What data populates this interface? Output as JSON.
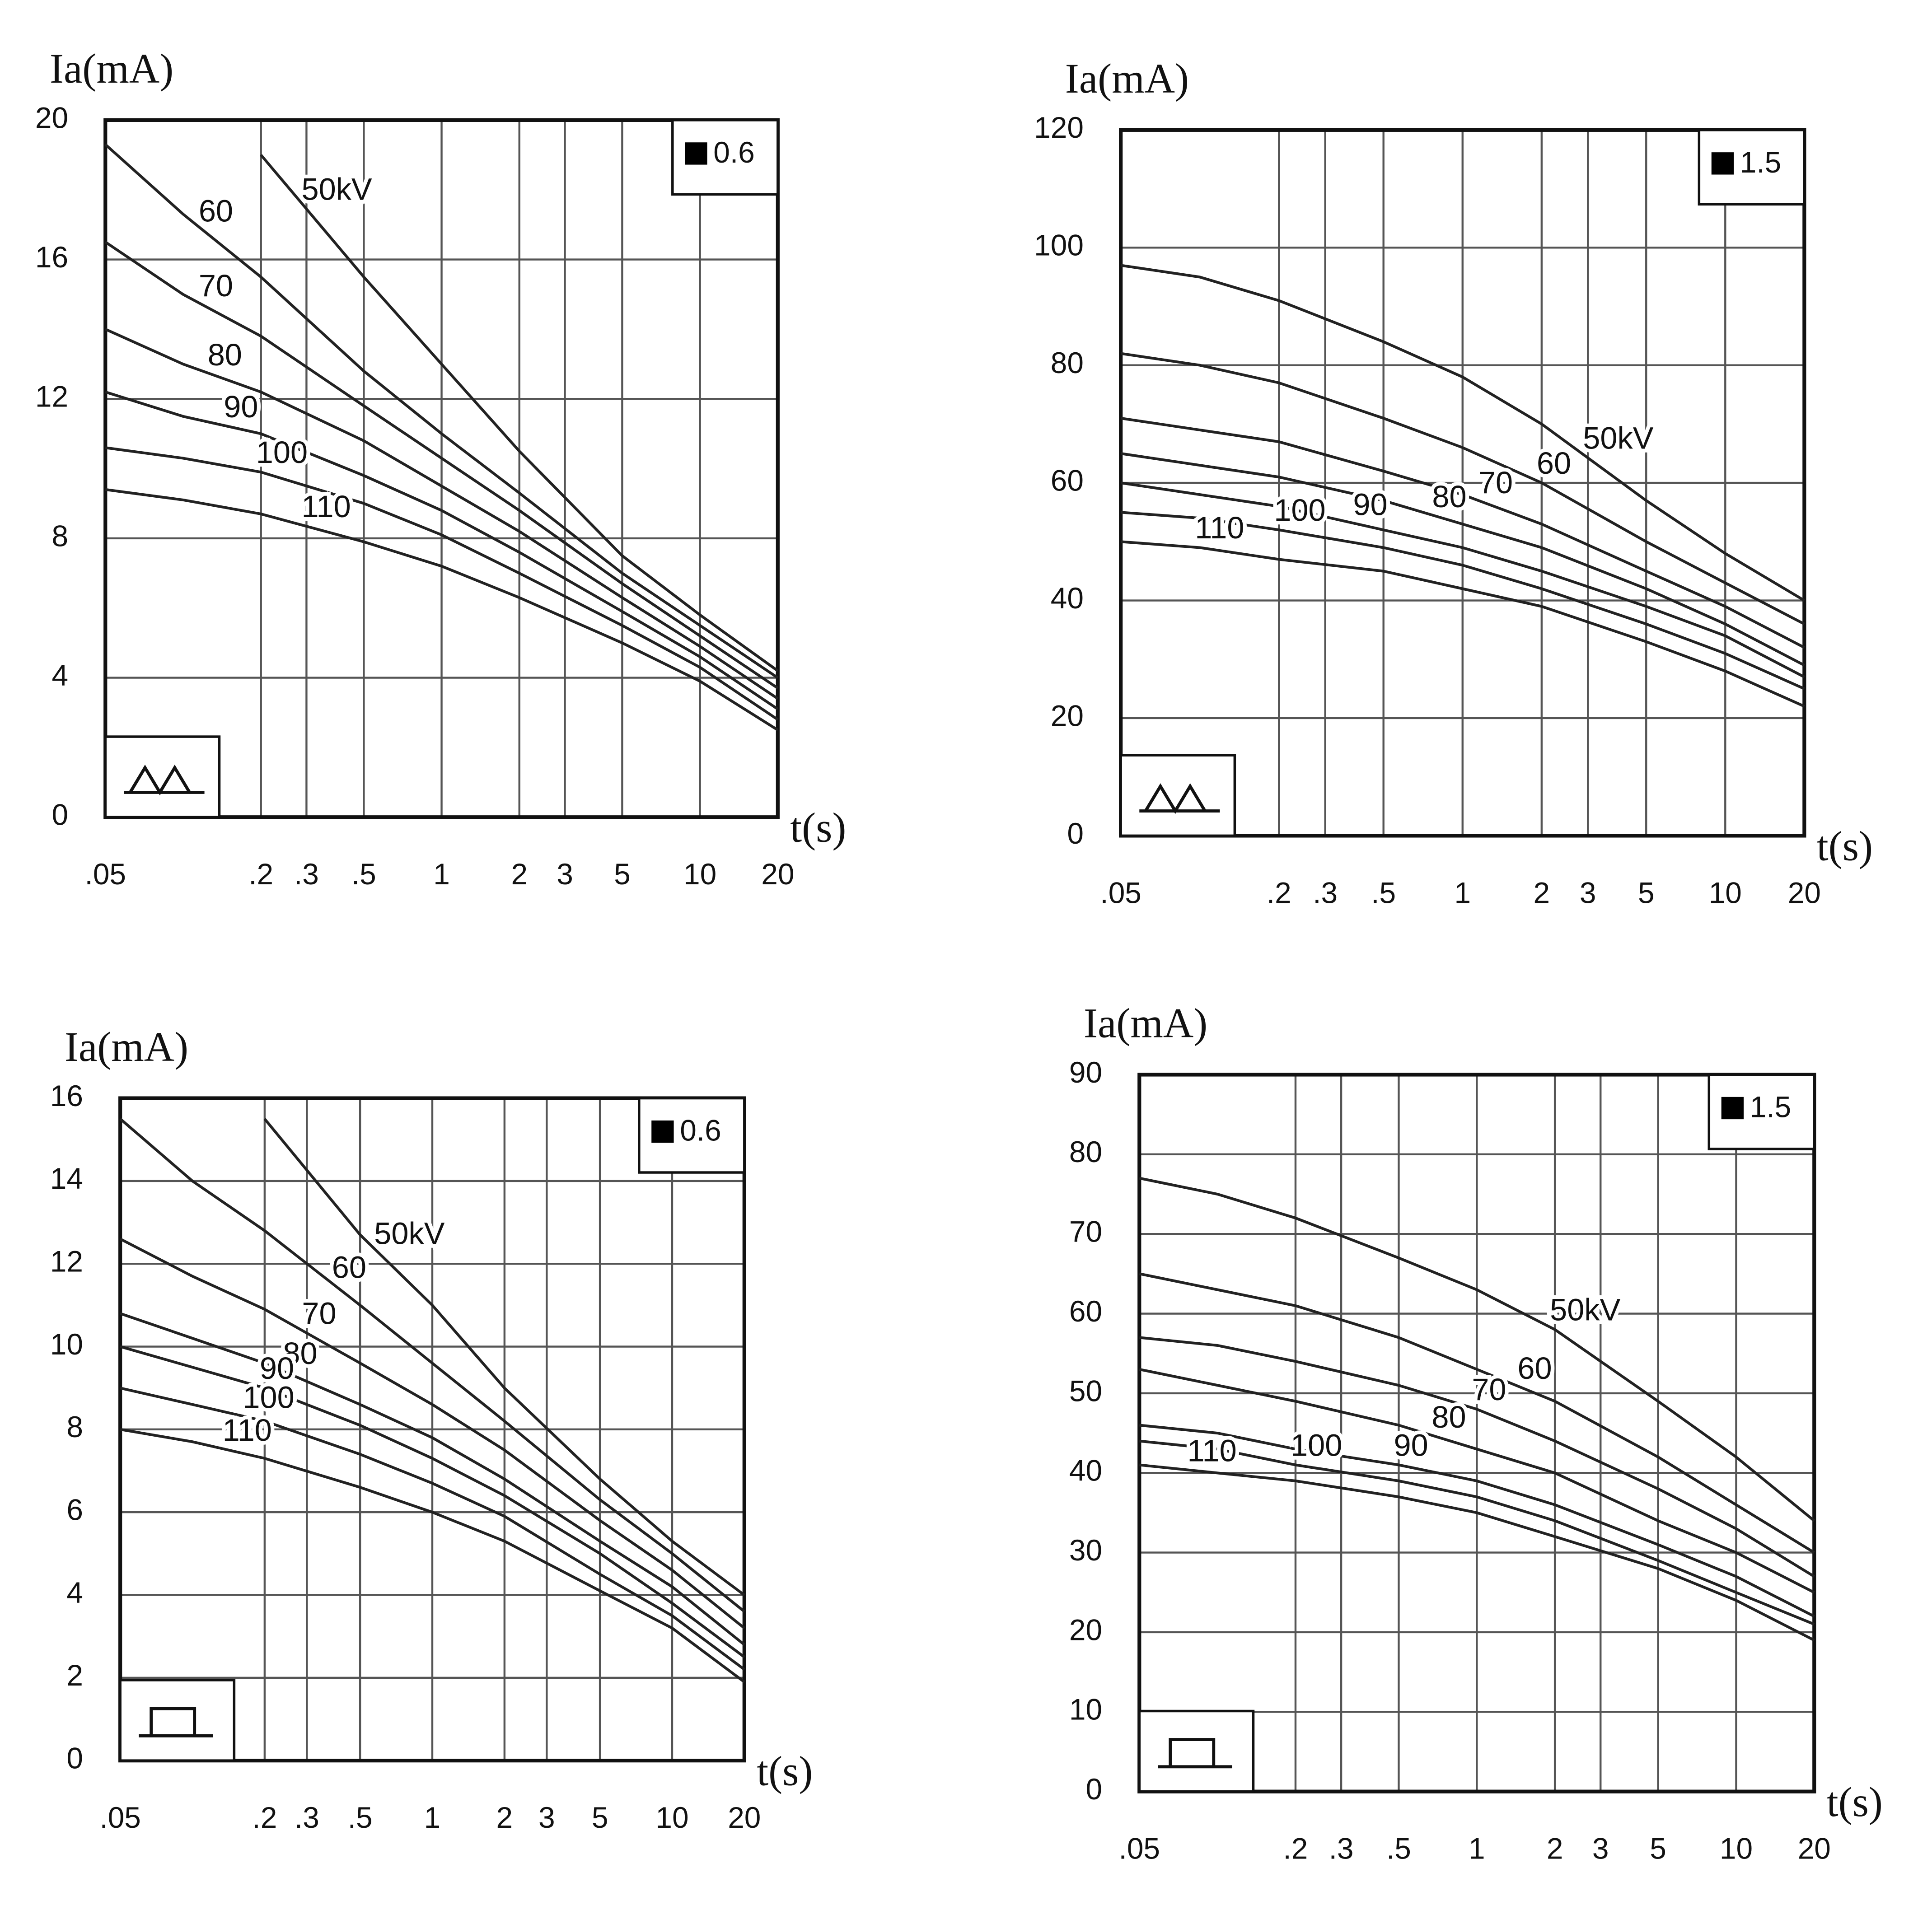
{
  "chart_data": [
    {
      "type": "line",
      "xscale": "log",
      "ylabel": "Ia(mA)",
      "xlabel": "t(s)",
      "annotation": "0.6",
      "grid": true,
      "color": "#222",
      "x": [
        0.05,
        0.1,
        0.2,
        0.5,
        1,
        2,
        5,
        10,
        20
      ],
      "xlim": [
        0.05,
        20
      ],
      "xticks": [
        {
          "value": 0.05,
          "label": ".05"
        },
        {
          "value": 0.2,
          "label": ".2"
        },
        {
          "value": 0.3,
          "label": ".3"
        },
        {
          "value": 0.5,
          "label": ".5"
        },
        1,
        2,
        3,
        5,
        10,
        20
      ],
      "ylim": [
        0,
        20
      ],
      "yticks": [
        0,
        4,
        8,
        12,
        16,
        20
      ],
      "series": [
        {
          "name": "50kV",
          "values": [
            null,
            null,
            19,
            15.5,
            13,
            10.5,
            7.5,
            5.8,
            4.2
          ]
        },
        {
          "name": "60",
          "values": [
            19.3,
            17.3,
            15.5,
            12.8,
            11,
            9.3,
            7,
            5.5,
            4
          ]
        },
        {
          "name": "70",
          "values": [
            16.5,
            15,
            13.8,
            11.8,
            10.3,
            8.8,
            6.7,
            5.2,
            3.7
          ]
        },
        {
          "name": "80",
          "values": [
            14,
            13,
            12.2,
            10.8,
            9.5,
            8.2,
            6.3,
            4.9,
            3.4
          ]
        },
        {
          "name": "90",
          "values": [
            12.2,
            11.5,
            11,
            9.8,
            8.8,
            7.6,
            5.9,
            4.6,
            3.1
          ]
        },
        {
          "name": "100",
          "values": [
            10.6,
            10.3,
            9.9,
            9,
            8.1,
            7,
            5.5,
            4.3,
            2.8
          ]
        },
        {
          "name": "110",
          "values": [
            9.4,
            9.1,
            8.7,
            7.9,
            7.2,
            6.3,
            5,
            3.9,
            2.5
          ]
        }
      ]
    },
    {
      "type": "line",
      "xscale": "log",
      "ylabel": "Ia(mA)",
      "xlabel": "t(s)",
      "annotation": "1.5",
      "grid": true,
      "color": "#222",
      "x": [
        0.05,
        0.1,
        0.2,
        0.5,
        1,
        2,
        5,
        10,
        20
      ],
      "xlim": [
        0.05,
        20
      ],
      "xticks": [
        {
          "value": 0.05,
          "label": ".05"
        },
        {
          "value": 0.2,
          "label": ".2"
        },
        {
          "value": 0.3,
          "label": ".3"
        },
        {
          "value": 0.5,
          "label": ".5"
        },
        1,
        2,
        3,
        5,
        10,
        20
      ],
      "ylim": [
        0,
        120
      ],
      "yticks": [
        0,
        20,
        40,
        60,
        80,
        100,
        120
      ],
      "series": [
        {
          "name": "50kV",
          "values": [
            97,
            95,
            91,
            84,
            78,
            70,
            57,
            48,
            40
          ]
        },
        {
          "name": "60",
          "values": [
            82,
            80,
            77,
            71,
            66,
            60,
            50,
            43,
            36
          ]
        },
        {
          "name": "70",
          "values": [
            71,
            69,
            67,
            62,
            58,
            53,
            45,
            39,
            32
          ]
        },
        {
          "name": "80",
          "values": [
            65,
            63,
            61,
            57,
            53,
            49,
            42,
            36,
            29
          ]
        },
        {
          "name": "90",
          "values": [
            60,
            58,
            56,
            52,
            49,
            45,
            39,
            34,
            27
          ]
        },
        {
          "name": "100",
          "values": [
            55,
            54,
            52,
            49,
            46,
            42,
            36,
            31,
            25
          ]
        },
        {
          "name": "110",
          "values": [
            50,
            49,
            47,
            45,
            42,
            39,
            33,
            28,
            22
          ]
        }
      ]
    },
    {
      "type": "line",
      "xscale": "log",
      "ylabel": "Ia(mA)",
      "xlabel": "t(s)",
      "annotation": "0.6",
      "grid": true,
      "color": "#222",
      "x": [
        0.05,
        0.1,
        0.2,
        0.5,
        1,
        2,
        5,
        10,
        20
      ],
      "xlim": [
        0.05,
        20
      ],
      "xticks": [
        {
          "value": 0.05,
          "label": ".05"
        },
        {
          "value": 0.2,
          "label": ".2"
        },
        {
          "value": 0.3,
          "label": ".3"
        },
        {
          "value": 0.5,
          "label": ".5"
        },
        1,
        2,
        3,
        5,
        10,
        20
      ],
      "ylim": [
        0,
        16
      ],
      "yticks": [
        0,
        2,
        4,
        6,
        8,
        10,
        12,
        14,
        16
      ],
      "series": [
        {
          "name": "50kV",
          "values": [
            null,
            null,
            15.5,
            12.7,
            11,
            9,
            6.8,
            5.3,
            4
          ]
        },
        {
          "name": "60",
          "values": [
            15.5,
            14,
            12.8,
            11,
            9.6,
            8.2,
            6.3,
            5,
            3.6
          ]
        },
        {
          "name": "70",
          "values": [
            12.6,
            11.7,
            10.9,
            9.6,
            8.6,
            7.5,
            5.8,
            4.6,
            3.2
          ]
        },
        {
          "name": "80",
          "values": [
            10.8,
            10.2,
            9.6,
            8.6,
            7.8,
            6.8,
            5.3,
            4.2,
            2.8
          ]
        },
        {
          "name": "90",
          "values": [
            10,
            9.5,
            9,
            8.1,
            7.3,
            6.4,
            5,
            3.8,
            2.5
          ]
        },
        {
          "name": "100",
          "values": [
            9,
            8.6,
            8.2,
            7.4,
            6.7,
            5.9,
            4.5,
            3.5,
            2.2
          ]
        },
        {
          "name": "110",
          "values": [
            8,
            7.7,
            7.3,
            6.6,
            6,
            5.3,
            4.1,
            3.2,
            1.9
          ]
        }
      ]
    },
    {
      "type": "line",
      "xscale": "log",
      "ylabel": "Ia(mA)",
      "xlabel": "t(s)",
      "annotation": "1.5",
      "grid": true,
      "color": "#222",
      "x": [
        0.05,
        0.1,
        0.2,
        0.5,
        1,
        2,
        5,
        10,
        20
      ],
      "xlim": [
        0.05,
        20
      ],
      "xticks": [
        {
          "value": 0.05,
          "label": ".05"
        },
        {
          "value": 0.2,
          "label": ".2"
        },
        {
          "value": 0.3,
          "label": ".3"
        },
        {
          "value": 0.5,
          "label": ".5"
        },
        1,
        2,
        3,
        5,
        10,
        20
      ],
      "ylim": [
        0,
        90
      ],
      "yticks": [
        0,
        10,
        20,
        30,
        40,
        50,
        60,
        70,
        80,
        90
      ],
      "series": [
        {
          "name": "50kV",
          "values": [
            77,
            75,
            72,
            67,
            63,
            58,
            49,
            42,
            34
          ]
        },
        {
          "name": "60",
          "values": [
            65,
            63,
            61,
            57,
            53,
            49,
            42,
            36,
            30
          ]
        },
        {
          "name": "70",
          "values": [
            57,
            56,
            54,
            51,
            48,
            44,
            38,
            33,
            27
          ]
        },
        {
          "name": "80",
          "values": [
            53,
            51,
            49,
            46,
            43,
            40,
            34,
            30,
            25
          ]
        },
        {
          "name": "90",
          "values": [
            46,
            45,
            43,
            41,
            39,
            36,
            31,
            27,
            22
          ]
        },
        {
          "name": "100",
          "values": [
            44,
            43,
            41,
            39,
            37,
            34,
            29,
            25,
            21
          ]
        },
        {
          "name": "110",
          "values": [
            41,
            40,
            39,
            37,
            35,
            32,
            28,
            24,
            19
          ]
        }
      ]
    }
  ]
}
